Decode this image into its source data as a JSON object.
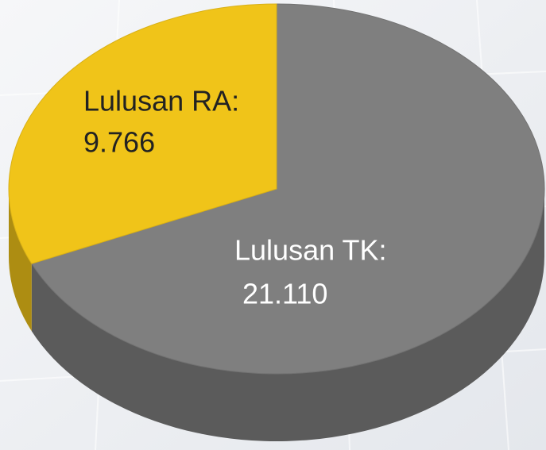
{
  "chart_data": {
    "type": "pie",
    "categories": [
      "Lulusan RA:",
      "Lulusan TK:"
    ],
    "values": [
      9766,
      21110
    ],
    "value_labels": [
      "9.766",
      "21.110"
    ],
    "colors": [
      "#f0c419",
      "#7f7f7f"
    ]
  }
}
